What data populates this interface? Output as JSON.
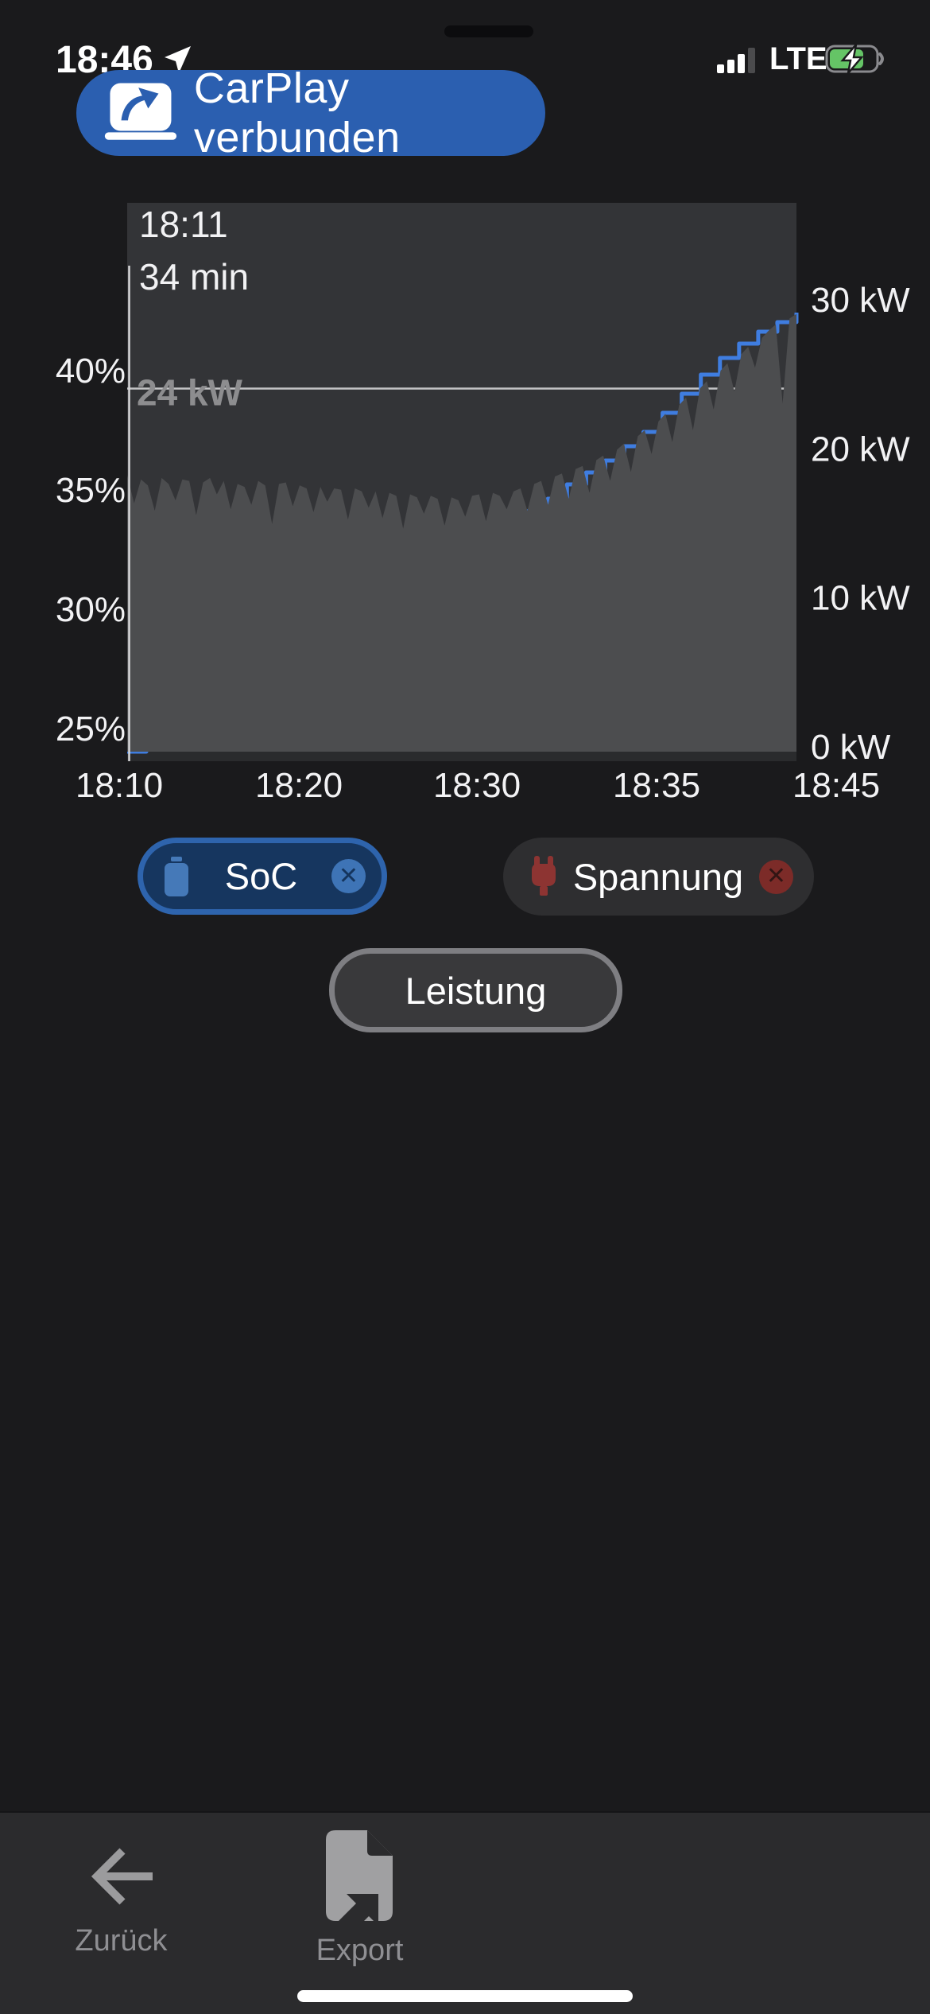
{
  "status_bar": {
    "time": "18:46",
    "network": "LTE"
  },
  "banner": {
    "label": "CarPlay verbunden"
  },
  "chart_data": {
    "type": "area+line",
    "tooltip": {
      "time": "18:11",
      "duration": "34 min"
    },
    "ref_line": {
      "label": "24 kW",
      "value_kw": 24
    },
    "x_ticks": [
      "18:10",
      "18:20",
      "18:30",
      "18:35",
      "18:45"
    ],
    "left_axis": {
      "name": "SoC",
      "unit": "%",
      "ticks": [
        "40%",
        "35%",
        "30%",
        "25%"
      ],
      "tick_values": [
        40,
        35,
        30,
        25
      ]
    },
    "right_axis": {
      "name": "Leistung",
      "unit": "kW",
      "ticks": [
        "30 kW",
        "20 kW",
        "10 kW",
        "0 kW"
      ],
      "tick_values": [
        30,
        20,
        10,
        0
      ]
    },
    "x_axis": {
      "start_label": "18:10",
      "end_label": "18:45",
      "duration_min": 35
    },
    "series": [
      {
        "name": "Leistung",
        "unit": "kW",
        "type": "area",
        "color": "#4c4d4f",
        "t_start_min": 0,
        "t_end_min": 35,
        "values": [
          18.2,
          16.3,
          17.9,
          17.5,
          15.8,
          18.0,
          17.6,
          16.5,
          17.9,
          17.8,
          15.5,
          17.7,
          18.0,
          16.9,
          17.8,
          15.9,
          17.6,
          17.4,
          16.2,
          17.8,
          17.5,
          14.9,
          17.6,
          17.7,
          16.1,
          17.5,
          17.3,
          15.7,
          17.4,
          16.4,
          17.3,
          17.2,
          15.2,
          17.3,
          17.1,
          16.0,
          17.1,
          15.3,
          17.0,
          16.8,
          14.6,
          16.9,
          16.7,
          15.6,
          16.8,
          16.6,
          14.8,
          16.7,
          16.5,
          15.4,
          16.8,
          16.9,
          15.1,
          17.0,
          16.8,
          15.9,
          17.1,
          17.3,
          15.8,
          17.6,
          17.8,
          16.2,
          18.1,
          18.3,
          16.6,
          18.6,
          18.8,
          17.0,
          19.2,
          19.5,
          17.8,
          19.9,
          20.3,
          18.4,
          20.8,
          21.2,
          19.6,
          21.8,
          22.3,
          20.4,
          22.9,
          23.4,
          21.2,
          24.0,
          24.5,
          22.6,
          25.2,
          25.7,
          23.8,
          26.3,
          26.8,
          25.4,
          27.4,
          27.9,
          28.3,
          23.0,
          28.7,
          29.0
        ]
      },
      {
        "name": "SoC",
        "unit": "%",
        "type": "step-line",
        "color": "#3f7de0",
        "t_start_min": 0,
        "t_step_min": 1,
        "values": [
          24.0,
          24.1,
          24.6,
          25.2,
          25.7,
          26.2,
          26.7,
          27.2,
          27.7,
          28.2,
          28.7,
          29.2,
          29.7,
          30.2,
          30.7,
          31.2,
          31.7,
          32.2,
          32.6,
          33.1,
          33.6,
          34.1,
          34.6,
          35.2,
          35.7,
          36.2,
          36.8,
          37.4,
          38.2,
          39.0,
          39.8,
          40.5,
          41.1,
          41.6,
          42.0,
          42.4
        ]
      }
    ]
  },
  "legend": {
    "items": [
      {
        "label": "SoC",
        "icon": "battery-icon",
        "active": true,
        "removable": true
      },
      {
        "label": "Spannung",
        "icon": "plug-icon",
        "active": true,
        "removable": true
      },
      {
        "label": "Leistung",
        "icon": null,
        "active": false,
        "removable": false
      }
    ]
  },
  "toolbar": {
    "items": [
      {
        "label": "Zurück",
        "icon": "back-arrow-icon"
      },
      {
        "label": "Export",
        "icon": "export-document-icon"
      }
    ]
  },
  "colors": {
    "page_bg": "#1a1a1c",
    "banner_blue": "#2b5fb0",
    "chart_bg": "#333437",
    "area_fill": "#4c4d4f",
    "soc_blue": "#3f7de0",
    "ref_line": "#c4c4c6",
    "ref_label": "#8d8d8f",
    "soc_chip_bg": "#16365f",
    "soc_chip_border": "#2e64ad",
    "spannung_red": "#8d3432",
    "battery_green": "#65c466",
    "toolbar_bg": "#2b2b2d"
  }
}
